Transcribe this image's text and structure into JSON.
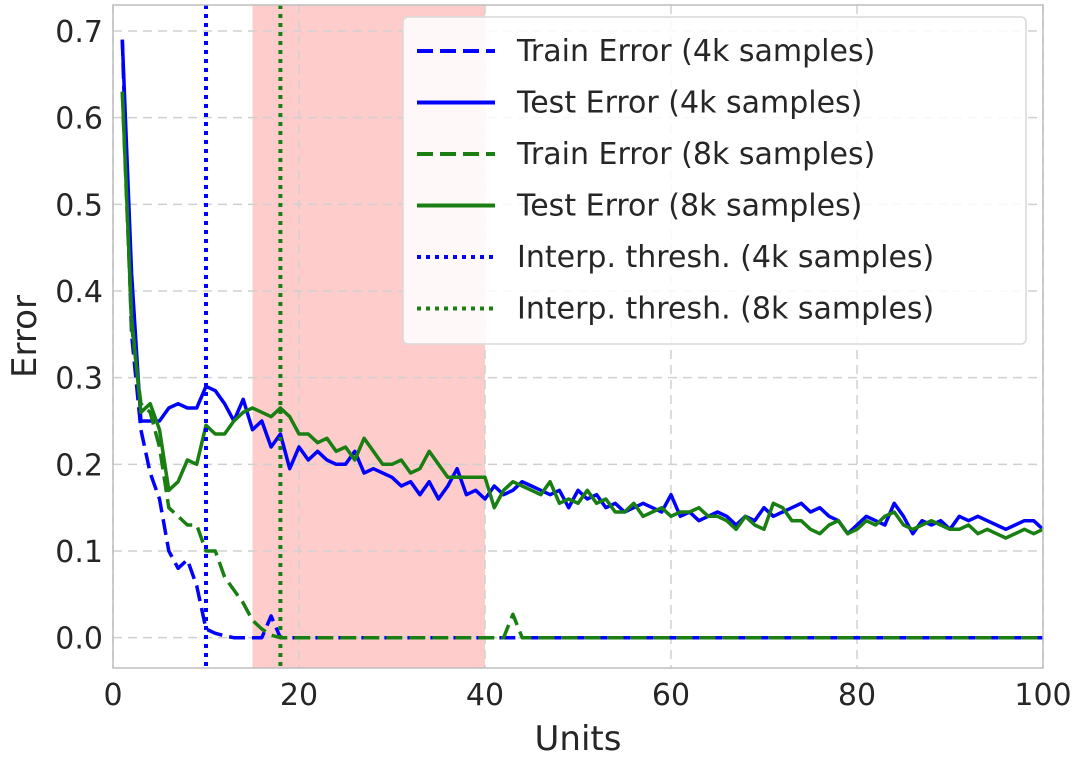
{
  "chart_data": {
    "type": "line",
    "xlabel": "Units",
    "ylabel": "Error",
    "xlim": [
      0,
      100
    ],
    "ylim": [
      -0.035,
      0.73
    ],
    "xticks": [
      0,
      20,
      40,
      60,
      80,
      100
    ],
    "yticks": [
      0.0,
      0.1,
      0.2,
      0.3,
      0.4,
      0.5,
      0.6,
      0.7
    ],
    "tick_labels_x": [
      "0",
      "20",
      "40",
      "60",
      "80",
      "100"
    ],
    "tick_labels_y": [
      "0.0",
      "0.1",
      "0.2",
      "0.3",
      "0.4",
      "0.5",
      "0.6",
      "0.7"
    ],
    "grid": true,
    "legend_position": "upper-right",
    "shaded_region": {
      "x_start": 15,
      "x_end": 40,
      "color": "#ffcccc"
    },
    "colors": {
      "blue": "#0000ff",
      "green": "#1a7f12"
    },
    "series": [
      {
        "name": "Train Error (4k samples)",
        "color": "#0000ff",
        "style": "dashed",
        "x": [
          1,
          2,
          3,
          4,
          5,
          6,
          7,
          8,
          9,
          10,
          11,
          12,
          13,
          14,
          15,
          16,
          17,
          18,
          19,
          20,
          25,
          30,
          35,
          40,
          45,
          50,
          55,
          60,
          65,
          70,
          75,
          80,
          85,
          90,
          95,
          100
        ],
        "y": [
          0.69,
          0.35,
          0.24,
          0.19,
          0.16,
          0.1,
          0.08,
          0.09,
          0.06,
          0.01,
          0.005,
          0.002,
          0.0,
          0.0,
          0.0,
          0.0,
          0.025,
          0.0,
          0.0,
          0.0,
          0.0,
          0.0,
          0.0,
          0.0,
          0.0,
          0.0,
          0.0,
          0.0,
          0.0,
          0.0,
          0.0,
          0.0,
          0.0,
          0.0,
          0.0,
          0.0
        ]
      },
      {
        "name": "Test Error (4k samples)",
        "color": "#0000ff",
        "style": "solid",
        "x": [
          1,
          2,
          3,
          4,
          5,
          6,
          7,
          8,
          9,
          10,
          11,
          12,
          13,
          14,
          15,
          16,
          17,
          18,
          19,
          20,
          21,
          22,
          23,
          24,
          25,
          26,
          27,
          28,
          29,
          30,
          31,
          32,
          33,
          34,
          35,
          36,
          37,
          38,
          39,
          40,
          41,
          42,
          43,
          44,
          45,
          46,
          47,
          48,
          49,
          50,
          51,
          52,
          53,
          54,
          55,
          56,
          57,
          58,
          59,
          60,
          61,
          62,
          63,
          64,
          65,
          66,
          67,
          68,
          69,
          70,
          71,
          72,
          73,
          74,
          75,
          76,
          77,
          78,
          79,
          80,
          81,
          82,
          83,
          84,
          85,
          86,
          87,
          88,
          89,
          90,
          91,
          92,
          93,
          94,
          95,
          96,
          97,
          98,
          99,
          100
        ],
        "y": [
          0.69,
          0.42,
          0.25,
          0.25,
          0.25,
          0.265,
          0.27,
          0.265,
          0.265,
          0.29,
          0.285,
          0.27,
          0.25,
          0.275,
          0.24,
          0.25,
          0.22,
          0.235,
          0.195,
          0.22,
          0.205,
          0.215,
          0.205,
          0.2,
          0.2,
          0.215,
          0.19,
          0.195,
          0.19,
          0.185,
          0.175,
          0.18,
          0.165,
          0.18,
          0.16,
          0.175,
          0.195,
          0.165,
          0.17,
          0.16,
          0.175,
          0.165,
          0.17,
          0.18,
          0.175,
          0.17,
          0.165,
          0.17,
          0.15,
          0.17,
          0.16,
          0.165,
          0.15,
          0.155,
          0.145,
          0.15,
          0.155,
          0.15,
          0.145,
          0.165,
          0.14,
          0.145,
          0.135,
          0.14,
          0.145,
          0.14,
          0.13,
          0.14,
          0.135,
          0.15,
          0.14,
          0.145,
          0.15,
          0.155,
          0.145,
          0.15,
          0.14,
          0.135,
          0.12,
          0.13,
          0.14,
          0.135,
          0.13,
          0.155,
          0.14,
          0.12,
          0.135,
          0.13,
          0.135,
          0.125,
          0.14,
          0.135,
          0.14,
          0.135,
          0.13,
          0.125,
          0.13,
          0.135,
          0.135,
          0.125
        ]
      },
      {
        "name": "Train Error (8k samples)",
        "color": "#1a7f12",
        "style": "dashed",
        "x": [
          1,
          2,
          3,
          4,
          5,
          6,
          7,
          8,
          9,
          10,
          11,
          12,
          13,
          14,
          15,
          16,
          17,
          18,
          19,
          20,
          25,
          30,
          35,
          40,
          41,
          42,
          43,
          44,
          45,
          50,
          55,
          60,
          65,
          70,
          75,
          80,
          85,
          90,
          95,
          100
        ],
        "y": [
          0.63,
          0.36,
          0.27,
          0.26,
          0.22,
          0.15,
          0.14,
          0.13,
          0.13,
          0.1,
          0.1,
          0.07,
          0.055,
          0.04,
          0.02,
          0.01,
          0.003,
          0.0,
          0.0,
          0.0,
          0.0,
          0.0,
          0.0,
          0.0,
          0.0,
          0.0,
          0.027,
          0.0,
          0.0,
          0.0,
          0.0,
          0.0,
          0.0,
          0.0,
          0.0,
          0.0,
          0.0,
          0.0,
          0.0,
          0.0
        ]
      },
      {
        "name": "Test Error (8k samples)",
        "color": "#1a7f12",
        "style": "solid",
        "x": [
          1,
          2,
          3,
          4,
          5,
          6,
          7,
          8,
          9,
          10,
          11,
          12,
          13,
          14,
          15,
          16,
          17,
          18,
          19,
          20,
          21,
          22,
          23,
          24,
          25,
          26,
          27,
          28,
          29,
          30,
          31,
          32,
          33,
          34,
          35,
          36,
          37,
          38,
          39,
          40,
          41,
          42,
          43,
          44,
          45,
          46,
          47,
          48,
          49,
          50,
          51,
          52,
          53,
          54,
          55,
          56,
          57,
          58,
          59,
          60,
          61,
          62,
          63,
          64,
          65,
          66,
          67,
          68,
          69,
          70,
          71,
          72,
          73,
          74,
          75,
          76,
          77,
          78,
          79,
          80,
          81,
          82,
          83,
          84,
          85,
          86,
          87,
          88,
          89,
          90,
          91,
          92,
          93,
          94,
          95,
          96,
          97,
          98,
          99,
          100
        ],
        "y": [
          0.63,
          0.37,
          0.26,
          0.27,
          0.24,
          0.17,
          0.18,
          0.205,
          0.2,
          0.245,
          0.235,
          0.235,
          0.25,
          0.26,
          0.265,
          0.26,
          0.255,
          0.265,
          0.255,
          0.235,
          0.235,
          0.225,
          0.23,
          0.215,
          0.22,
          0.205,
          0.23,
          0.215,
          0.2,
          0.2,
          0.205,
          0.19,
          0.195,
          0.215,
          0.2,
          0.185,
          0.185,
          0.185,
          0.185,
          0.185,
          0.15,
          0.17,
          0.18,
          0.175,
          0.17,
          0.165,
          0.18,
          0.155,
          0.16,
          0.155,
          0.17,
          0.155,
          0.16,
          0.145,
          0.145,
          0.155,
          0.14,
          0.145,
          0.15,
          0.14,
          0.145,
          0.145,
          0.15,
          0.14,
          0.14,
          0.135,
          0.125,
          0.14,
          0.13,
          0.125,
          0.155,
          0.15,
          0.135,
          0.135,
          0.125,
          0.12,
          0.13,
          0.135,
          0.12,
          0.125,
          0.135,
          0.13,
          0.14,
          0.145,
          0.13,
          0.125,
          0.13,
          0.135,
          0.13,
          0.125,
          0.125,
          0.13,
          0.12,
          0.125,
          0.12,
          0.115,
          0.12,
          0.125,
          0.12,
          0.125
        ]
      },
      {
        "name": "Interp. thresh. (4k samples)",
        "color": "#0000ff",
        "style": "dotted",
        "vline_x": 10
      },
      {
        "name": "Interp. thresh. (8k samples)",
        "color": "#1a7f12",
        "style": "dotted",
        "vline_x": 18
      }
    ]
  }
}
